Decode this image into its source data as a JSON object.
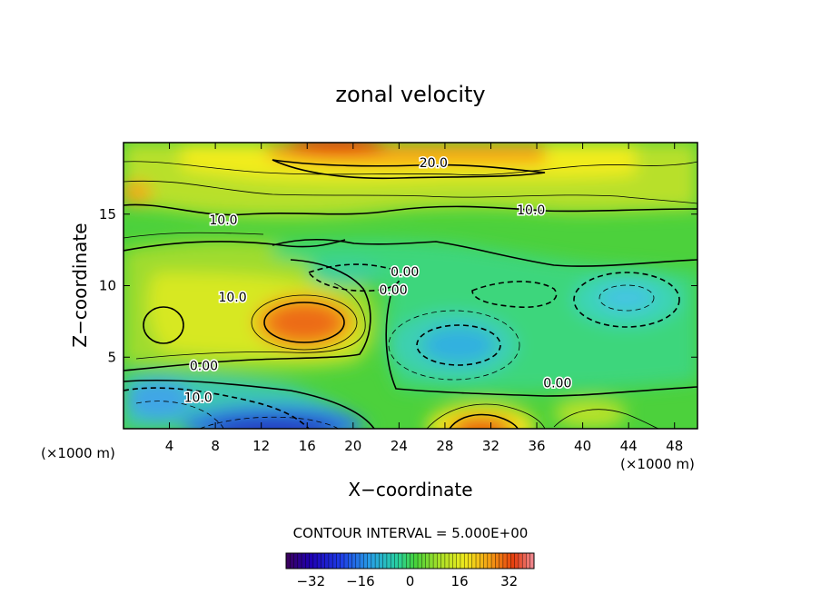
{
  "chart_data": {
    "type": "heatmap",
    "title": "zonal velocity",
    "xlabel": "X−coordinate",
    "ylabel": "Z−coordinate",
    "x_unit": "(×1000 m)",
    "z_unit": "(×1000 m)",
    "xlim": [
      0,
      50
    ],
    "ylim": [
      0,
      20
    ],
    "x_ticks": [
      4,
      8,
      12,
      16,
      20,
      24,
      28,
      32,
      36,
      40,
      44,
      48
    ],
    "y_ticks": [
      5,
      10,
      15
    ],
    "contour_interval_text": "CONTOUR INTERVAL = 5.000E+00",
    "contour_interval": 5,
    "contour_labels": [
      {
        "text": "20.0",
        "x": 27.0,
        "z": 18.6
      },
      {
        "text": "10.0",
        "x": 35.5,
        "z": 15.3
      },
      {
        "text": "10.0",
        "x": 8.7,
        "z": 14.6
      },
      {
        "text": "10.0",
        "x": 9.5,
        "z": 9.2
      },
      {
        "text": "10.0",
        "x": 6.5,
        "z": 2.2
      },
      {
        "text": "0.00",
        "x": 24.5,
        "z": 11.0
      },
      {
        "text": "0.00",
        "x": 23.5,
        "z": 9.7
      },
      {
        "text": "0.00",
        "x": 7.0,
        "z": 4.4
      },
      {
        "text": "0.00",
        "x": 37.8,
        "z": 3.2
      }
    ],
    "extrema": [
      {
        "label": "max",
        "x": 19.0,
        "z": 19.8,
        "value": 32
      },
      {
        "label": "max",
        "x": 17.5,
        "z": 7.5,
        "value": 26
      },
      {
        "label": "max",
        "x": 31.5,
        "z": 0.3,
        "value": 32
      },
      {
        "label": "min",
        "x": 16.0,
        "z": 0.3,
        "value": -30
      },
      {
        "label": "min",
        "x": 30.0,
        "z": 5.5,
        "value": -14
      },
      {
        "label": "min",
        "x": 43.5,
        "z": 9.0,
        "value": -10
      },
      {
        "label": "min",
        "x": 3.0,
        "z": 2.0,
        "value": -12
      }
    ],
    "colorbar": {
      "min": -40,
      "max": 40,
      "ticks": [
        -32,
        -16,
        0,
        16,
        32
      ],
      "tick_labels": [
        "−32",
        "−16",
        "0",
        "16",
        "32"
      ]
    }
  }
}
